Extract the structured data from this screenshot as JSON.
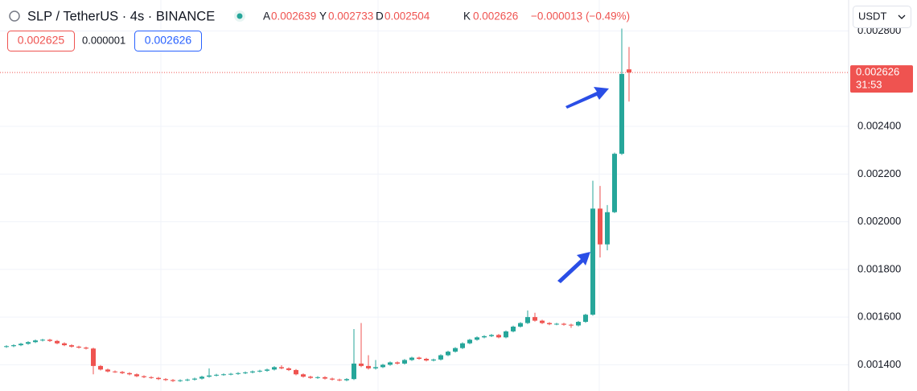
{
  "chart_data": {
    "type": "candlestick",
    "title": "SLP / TetherUS · 4s · BINANCE",
    "legend_labels": {
      "open": "A",
      "high": "Y",
      "low": "D",
      "close": "K"
    },
    "change": "−0.000013 (−0.49%)",
    "bid": 0.002625,
    "spread": 1e-06,
    "ask": 0.002626,
    "currency": "USDT",
    "last_price": 0.002626,
    "countdown": "31:53",
    "up_color": "#26a69a",
    "down_color": "#ef5350",
    "grid": true,
    "ylim": [
      0.00129,
      0.00293
    ],
    "yticks": [
      {
        "value": 0.0014,
        "label": "0.001400"
      },
      {
        "value": 0.0016,
        "label": "0.001600"
      },
      {
        "value": 0.0018,
        "label": "0.001800"
      },
      {
        "value": 0.002,
        "label": "0.002000"
      },
      {
        "value": 0.0022,
        "label": "0.002200"
      },
      {
        "value": 0.0024,
        "label": "0.002400"
      },
      {
        "value": 0.0028,
        "label": "0.002800"
      }
    ],
    "open": [
      0.001475,
      0.001478,
      0.001482,
      0.001488,
      0.001495,
      0.001502,
      0.001505,
      0.0015,
      0.00149,
      0.001482,
      0.001476,
      0.001472,
      0.001468,
      0.001395,
      0.00138,
      0.001372,
      0.00137,
      0.001365,
      0.00136,
      0.001352,
      0.001348,
      0.001345,
      0.00134,
      0.001336,
      0.001332,
      0.001335,
      0.001338,
      0.001342,
      0.00135,
      0.001355,
      0.001358,
      0.00136,
      0.001362,
      0.001365,
      0.001368,
      0.001372,
      0.001375,
      0.00138,
      0.00139,
      0.001385,
      0.001378,
      0.00136,
      0.00135,
      0.001345,
      0.001348,
      0.001342,
      0.001338,
      0.001335,
      0.00134,
      0.001405,
      0.001395,
      0.001385,
      0.00139,
      0.0014,
      0.00141,
      0.001405,
      0.00142,
      0.00143,
      0.001425,
      0.001418,
      0.001422,
      0.00144,
      0.001455,
      0.00147,
      0.00149,
      0.001505,
      0.001515,
      0.00152,
      0.001525,
      0.001515,
      0.00154,
      0.00156,
      0.001575,
      0.0016,
      0.001585,
      0.001575,
      0.00157,
      0.001572,
      0.001568,
      0.001565,
      0.00158,
      0.00161,
      0.002055,
      0.001905,
      0.00204,
      0.002285,
      0.002639
    ],
    "high": [
      0.001482,
      0.001486,
      0.001492,
      0.001499,
      0.001506,
      0.001509,
      0.001509,
      0.001504,
      0.001494,
      0.001486,
      0.00148,
      0.001476,
      0.001472,
      0.001399,
      0.001384,
      0.001376,
      0.001374,
      0.001369,
      0.001364,
      0.001356,
      0.001352,
      0.001349,
      0.001344,
      0.00134,
      0.001339,
      0.001342,
      0.001346,
      0.001354,
      0.001385,
      0.001362,
      0.001364,
      0.001366,
      0.001369,
      0.001372,
      0.001376,
      0.001379,
      0.001384,
      0.001394,
      0.001398,
      0.001389,
      0.001382,
      0.001364,
      0.001354,
      0.001352,
      0.001352,
      0.001346,
      0.001342,
      0.001344,
      0.00155,
      0.001575,
      0.00144,
      0.00142,
      0.001404,
      0.001414,
      0.001414,
      0.001424,
      0.001434,
      0.001434,
      0.001429,
      0.001426,
      0.001444,
      0.001459,
      0.001474,
      0.001494,
      0.001509,
      0.001519,
      0.001524,
      0.001529,
      0.001529,
      0.001544,
      0.001564,
      0.001579,
      0.001628,
      0.001618,
      0.001589,
      0.001579,
      0.001576,
      0.001576,
      0.001572,
      0.001584,
      0.001614,
      0.002172,
      0.00215,
      0.00207,
      0.00229,
      0.00281,
      0.002733
    ],
    "low": [
      0.001471,
      0.001474,
      0.001478,
      0.001484,
      0.001491,
      0.001498,
      0.001496,
      0.001486,
      0.001478,
      0.001472,
      0.001468,
      0.001464,
      0.00136,
      0.001376,
      0.001368,
      0.001366,
      0.001361,
      0.001356,
      0.001348,
      0.001344,
      0.001341,
      0.001336,
      0.001332,
      0.001328,
      0.001328,
      0.001331,
      0.001334,
      0.001338,
      0.001346,
      0.001351,
      0.001354,
      0.001356,
      0.001358,
      0.001361,
      0.001364,
      0.001368,
      0.001371,
      0.001376,
      0.001381,
      0.001374,
      0.001356,
      0.001346,
      0.001341,
      0.001341,
      0.001338,
      0.001334,
      0.001331,
      0.001331,
      0.001336,
      0.00139,
      0.00138,
      0.00138,
      0.001386,
      0.001396,
      0.001401,
      0.001401,
      0.001416,
      0.001421,
      0.001414,
      0.001414,
      0.001418,
      0.001436,
      0.001451,
      0.001466,
      0.001486,
      0.001501,
      0.001511,
      0.001516,
      0.001511,
      0.001511,
      0.001536,
      0.001556,
      0.001571,
      0.001581,
      0.001571,
      0.001566,
      0.001566,
      0.001564,
      0.001555,
      0.001561,
      0.001576,
      0.001606,
      0.00185,
      0.00188,
      0.002036,
      0.00228,
      0.002504
    ],
    "close": [
      0.001478,
      0.001482,
      0.001488,
      0.001495,
      0.001502,
      0.001505,
      0.0015,
      0.00149,
      0.001482,
      0.001476,
      0.001472,
      0.001468,
      0.001395,
      0.00138,
      0.001372,
      0.00137,
      0.001365,
      0.00136,
      0.001352,
      0.001348,
      0.001345,
      0.00134,
      0.001336,
      0.001332,
      0.001335,
      0.001338,
      0.001342,
      0.00135,
      0.001355,
      0.001358,
      0.00136,
      0.001362,
      0.001365,
      0.001368,
      0.001372,
      0.001375,
      0.00138,
      0.00139,
      0.001385,
      0.001378,
      0.00136,
      0.00135,
      0.001345,
      0.001348,
      0.001342,
      0.001338,
      0.001335,
      0.00134,
      0.001405,
      0.001395,
      0.001385,
      0.00139,
      0.0014,
      0.00141,
      0.001405,
      0.00142,
      0.00143,
      0.001425,
      0.001418,
      0.001422,
      0.00144,
      0.001455,
      0.00147,
      0.00149,
      0.001505,
      0.001515,
      0.00152,
      0.001525,
      0.001515,
      0.00154,
      0.00156,
      0.001575,
      0.0016,
      0.001585,
      0.001575,
      0.00157,
      0.001572,
      0.001568,
      0.001565,
      0.00158,
      0.00161,
      0.002055,
      0.001905,
      0.00204,
      0.002285,
      0.00262,
      0.002626
    ]
  }
}
